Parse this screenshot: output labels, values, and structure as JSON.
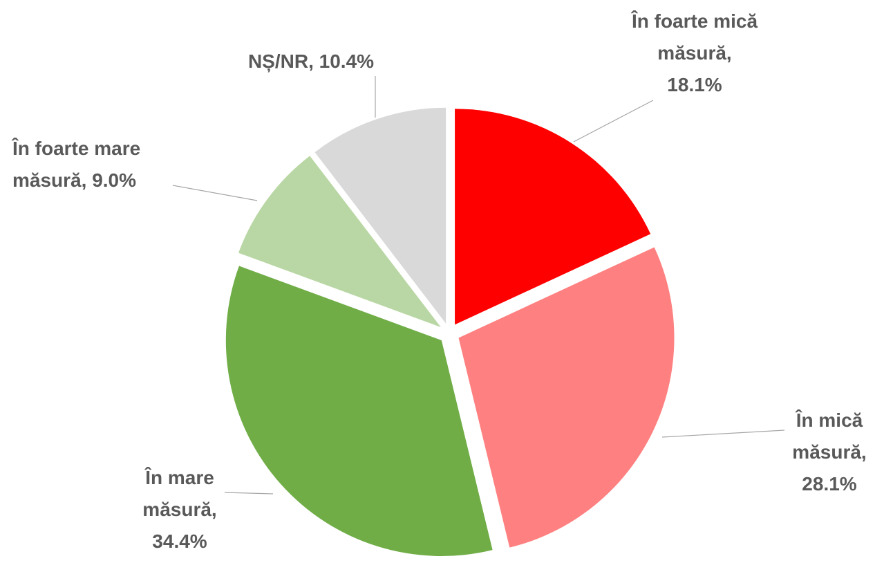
{
  "chart_data": {
    "type": "pie",
    "categories": [
      "În foarte mică măsură,",
      "În mică măsură,",
      "În mare măsură,",
      "În foarte mare măsură,",
      "NȘ/NR,"
    ],
    "values": [
      18.1,
      28.1,
      34.4,
      9.0,
      10.4
    ],
    "value_labels": [
      "18.1%",
      "28.1%",
      "34.4%",
      "9.0%",
      "10.4%"
    ],
    "colors": [
      "#ff0000",
      "#ff8080",
      "#70ad47",
      "#b9d7a4",
      "#d9d9d9"
    ]
  }
}
